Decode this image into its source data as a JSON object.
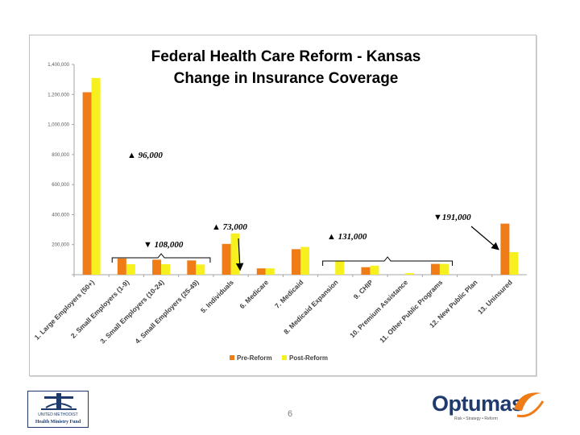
{
  "slide": {
    "page_number": "6",
    "left_logo": {
      "line1": "UNITED METHODIST",
      "line2": "Health Ministry Fund"
    },
    "right_logo": {
      "name": "Optumas",
      "tagline": "Risk • Strategy • Reform"
    }
  },
  "colors": {
    "pre_reform": "#f07c18",
    "post_reform": "#f5f01e",
    "annotation": "#000000",
    "frame": "#bfbfbf"
  },
  "chart_data": {
    "type": "bar",
    "title_line1": "Federal Health Care Reform - Kansas",
    "title_line2": "Change in Insurance Coverage",
    "xlabel": "",
    "ylabel": "",
    "ylim": [
      0,
      1400000
    ],
    "y_ticks": [
      0,
      200000,
      400000,
      600000,
      800000,
      1000000,
      1200000,
      1400000
    ],
    "y_tick_labels": [
      "",
      "200,000",
      "400,000",
      "600,000",
      "800,000",
      "1,000,000",
      "1,200,000",
      "1,400,000"
    ],
    "categories": [
      "1. Large Employers (50+)",
      "2. Small Employers (1-9)",
      "3. Small Employers (10-24)",
      "4. Small Employers (25-49)",
      "5. Individuals",
      "6. Medicare",
      "7. Medicaid",
      "8. Medicaid Expansion",
      "9. CHIP",
      "10. Premium Assistance",
      "11. Other Public Programs",
      "12. New Public Plan",
      "13. Uninsured"
    ],
    "series": [
      {
        "name": "Pre-Reform",
        "values": [
          1215000,
          108000,
          100000,
          95000,
          205000,
          42000,
          170000,
          0,
          50000,
          0,
          72000,
          0,
          340000
        ]
      },
      {
        "name": "Post-Reform",
        "values": [
          1310000,
          70000,
          70000,
          68000,
          275000,
          42000,
          185000,
          90000,
          60000,
          10000,
          72000,
          0,
          150000
        ]
      }
    ],
    "legend": [
      "Pre-Reform",
      "Post-Reform"
    ],
    "legend_position": "bottom",
    "grid": false,
    "annotations": [
      {
        "text": "▲ 96,000"
      },
      {
        "text": "▼ 108,000"
      },
      {
        "text": "▲ 73,000"
      },
      {
        "text": "▲ 131,000"
      },
      {
        "text": "▼191,000"
      }
    ]
  }
}
